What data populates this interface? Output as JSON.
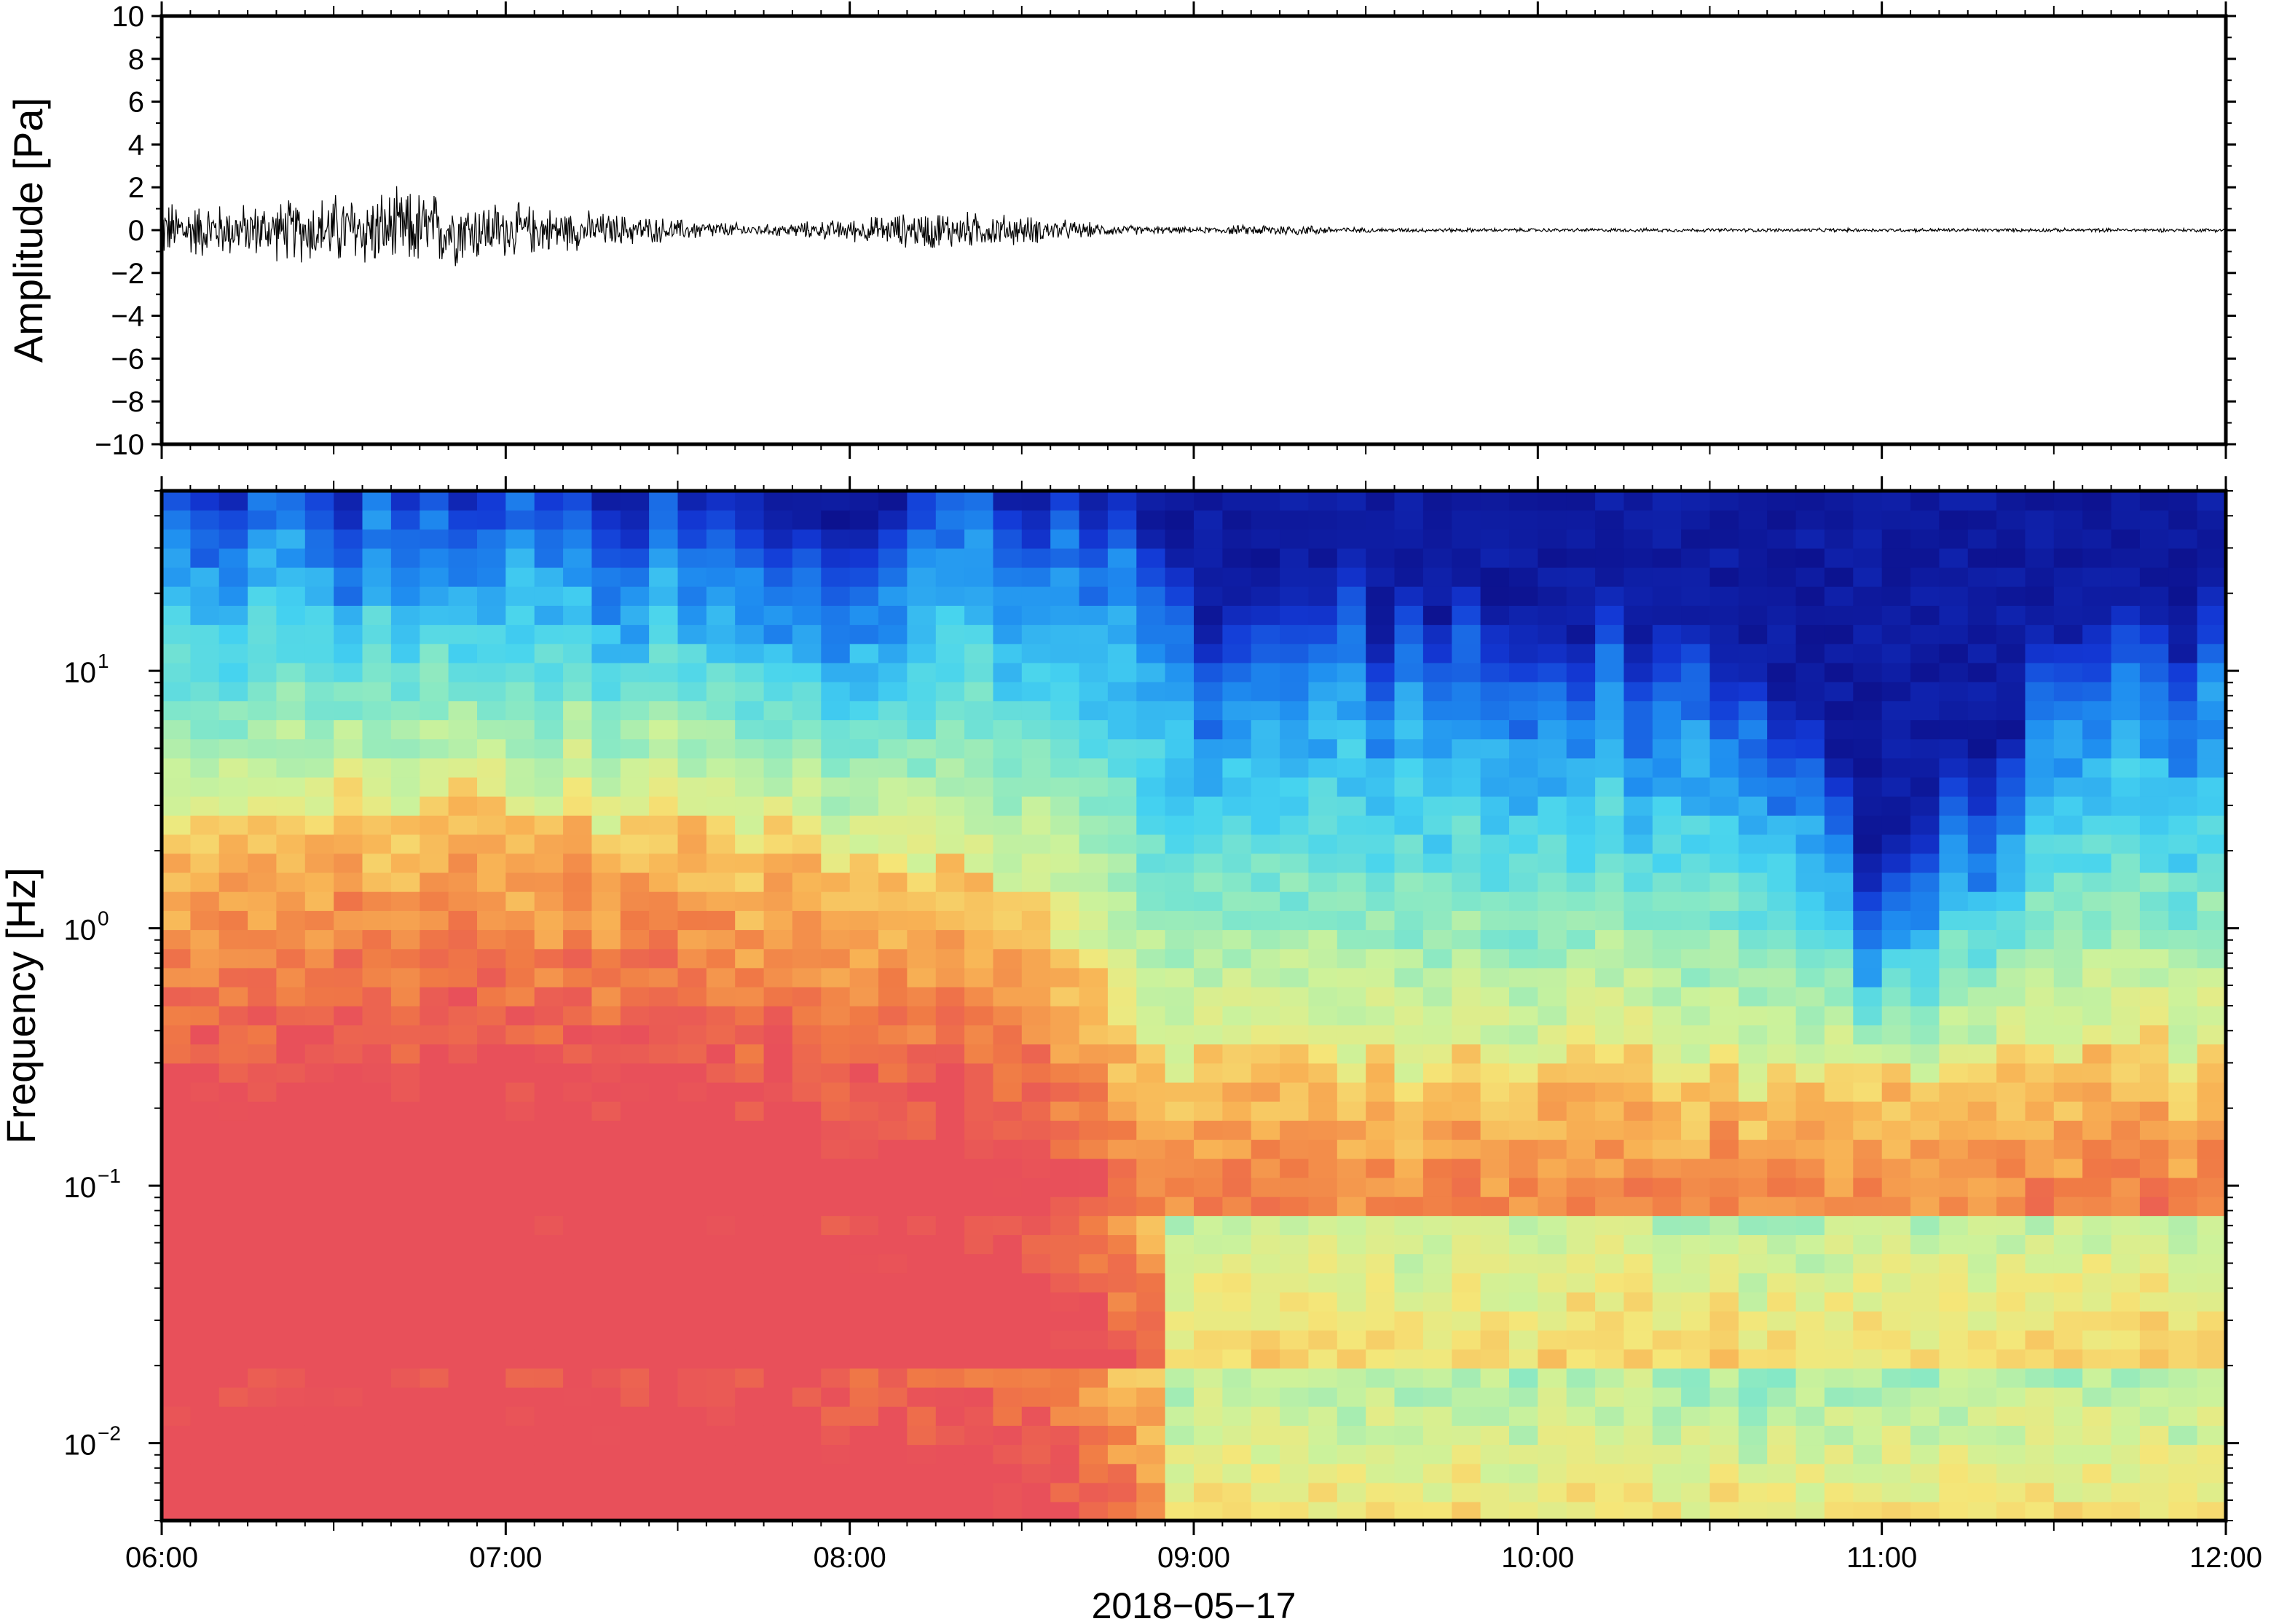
{
  "chart_data": [
    {
      "type": "line",
      "ylabel": "Amplitude [Pa]",
      "ylim": [
        -10,
        10
      ],
      "yticks": [
        10,
        8,
        6,
        4,
        2,
        0,
        -2,
        -4,
        -6,
        -8,
        -10
      ],
      "ytick_labels": [
        "10",
        "8",
        "6",
        "4",
        "2",
        "0",
        "−2",
        "−4",
        "−6",
        "−8",
        "−10"
      ],
      "xlim": [
        "06:00",
        "12:00"
      ],
      "series": [
        {
          "color": "#000000",
          "envelope_time": [
            "06:00",
            "06:15",
            "06:30",
            "06:45",
            "07:00",
            "07:15",
            "07:30",
            "07:45",
            "08:00",
            "08:15",
            "08:30",
            "08:45",
            "09:00",
            "09:15",
            "09:30",
            "10:00",
            "11:00",
            "12:00"
          ],
          "envelope_amplitude": [
            1.6,
            1.4,
            2.0,
            2.2,
            1.5,
            1.0,
            0.6,
            0.3,
            0.6,
            1.1,
            0.8,
            0.3,
            0.15,
            0.35,
            0.12,
            0.1,
            0.1,
            0.1
          ]
        }
      ],
      "grid": false
    },
    {
      "type": "heatmap",
      "ylabel": "Frequency [Hz]",
      "yscale": "log",
      "ylim": [
        0.005,
        50
      ],
      "yticks": [
        0.01,
        0.1,
        1,
        10
      ],
      "ytick_labels": [
        {
          "base": "10",
          "exp": "−2"
        },
        {
          "base": "10",
          "exp": "−1"
        },
        {
          "base": "10",
          "exp": "0"
        },
        {
          "base": "10",
          "exp": "1"
        }
      ],
      "xlim": [
        "06:00",
        "12:00"
      ],
      "xtick_labels": [
        "06:00",
        "07:00",
        "08:00",
        "09:00",
        "10:00",
        "11:00",
        "12:00"
      ],
      "xlabel": "2018−05−17",
      "colormap": "jet-like, dark blue (low power) to red (high power)",
      "colormap_colors": [
        "#0b0a80",
        "#1339d6",
        "#1f8ef0",
        "#45d3f0",
        "#86e8c6",
        "#cdf29a",
        "#f5e678",
        "#f8b455",
        "#f07a45",
        "#e8505a"
      ],
      "column_time": [
        "06:00",
        "06:30",
        "07:00",
        "07:30",
        "08:00",
        "08:15",
        "08:30",
        "08:50",
        "09:00",
        "09:30",
        "10:00",
        "10:30",
        "11:00",
        "11:30",
        "12:00"
      ],
      "blue_edge_hz": [
        30,
        30,
        28,
        26,
        22,
        28,
        25,
        20,
        10,
        9,
        7,
        8,
        1.0,
        5,
        10
      ],
      "warm_ceiling_hz": [
        3,
        3,
        3,
        2.5,
        2,
        2,
        1.5,
        0.4,
        0.3,
        0.3,
        0.3,
        0.3,
        0.25,
        0.3,
        0.35
      ],
      "grid": false
    }
  ]
}
